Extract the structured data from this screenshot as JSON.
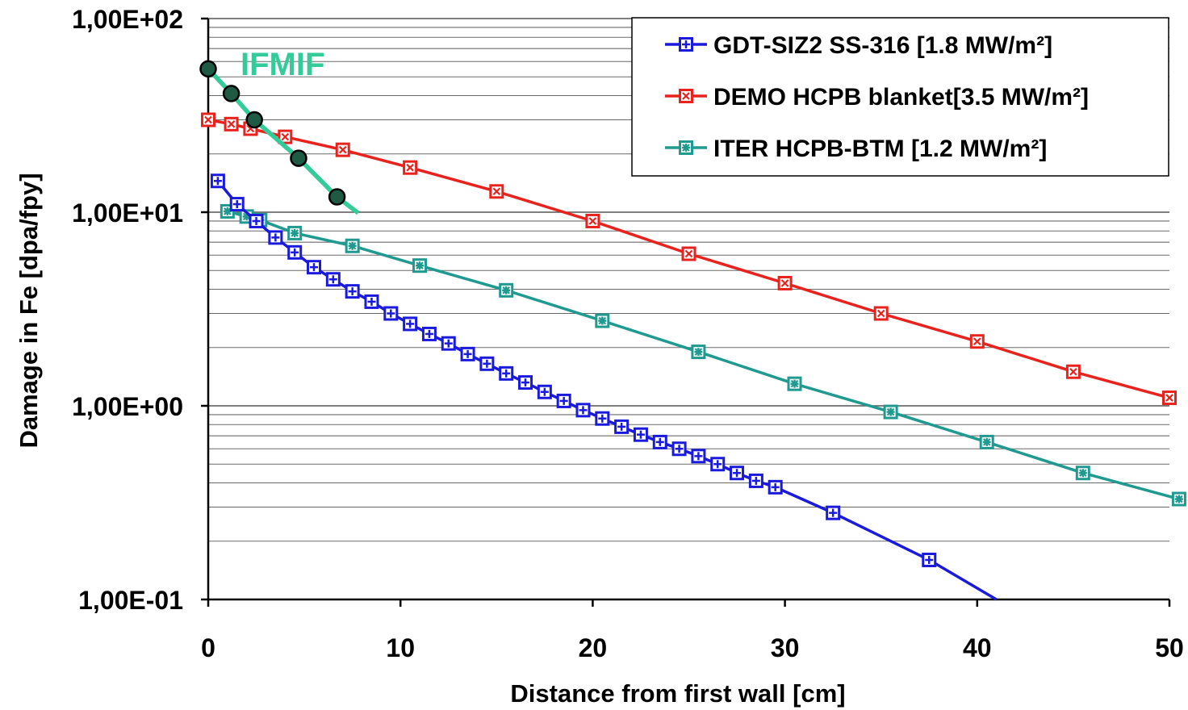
{
  "chart_data": {
    "type": "line",
    "x_axis": {
      "label": "Distance from first wall [cm]",
      "range": [
        0,
        50
      ],
      "ticks": [
        0,
        10,
        20,
        30,
        40,
        50
      ],
      "tick_labels": [
        "0",
        "10",
        "20",
        "30",
        "40",
        "50"
      ],
      "scale": "linear"
    },
    "y_axis": {
      "label": "Damage in Fe [dpa/fpy]",
      "range": [
        0.1,
        100
      ],
      "ticks": [
        0.1,
        1,
        10,
        100
      ],
      "tick_labels": [
        "1,00E-01",
        "1,00E+00",
        "1,00E+01",
        "1,00E+02"
      ],
      "scale": "log"
    },
    "grid": "horizontal minor and major lines",
    "legend": {
      "placement": "top-right",
      "entries": [
        "GDT-SIZ2 SS-316 [1.8 MW/m²]",
        "DEMO HCPB blanket[3.5 MW/m²]",
        "ITER HCPB-BTM [1.2 MW/m²]"
      ]
    },
    "annotations": [
      {
        "text": "IFMIF",
        "color": "#33cc99"
      }
    ],
    "series": [
      {
        "name": "GDT-SIZ2 SS-316 [1.8 MW/m²]",
        "color": "#1a1adc",
        "marker": "square-cross",
        "x": [
          0.5,
          1.5,
          2.5,
          3.5,
          4.5,
          5.5,
          6.5,
          7.5,
          8.5,
          9.5,
          10.5,
          11.5,
          12.5,
          13.5,
          14.5,
          15.5,
          16.5,
          17.5,
          18.5,
          19.5,
          20.5,
          21.5,
          22.5,
          23.5,
          24.5,
          25.5,
          26.5,
          27.5,
          28.5,
          29.5,
          32.5,
          37.5,
          41
        ],
        "y": [
          14.5,
          11.0,
          9.0,
          7.4,
          6.2,
          5.2,
          4.5,
          3.9,
          3.45,
          3.0,
          2.65,
          2.35,
          2.1,
          1.85,
          1.65,
          1.47,
          1.32,
          1.18,
          1.06,
          0.95,
          0.86,
          0.78,
          0.71,
          0.65,
          0.6,
          0.55,
          0.5,
          0.45,
          0.41,
          0.38,
          0.28,
          0.16,
          0.1
        ],
        "markers_shown": 32
      },
      {
        "name": "DEMO HCPB blanket[3.5 MW/m²]",
        "color": "#e8231e",
        "marker": "square-x",
        "x": [
          0,
          1.2,
          2.2,
          4,
          7,
          10.5,
          15,
          20,
          25,
          30,
          35,
          40,
          45,
          50
        ],
        "y": [
          30,
          28.5,
          27,
          24.5,
          21,
          17,
          12.8,
          9.0,
          6.1,
          4.3,
          3.0,
          2.15,
          1.5,
          1.1
        ]
      },
      {
        "name": "ITER HCPB-BTM [1.2 MW/m²]",
        "color": "#209a90",
        "marker": "square-star",
        "x": [
          1,
          2,
          2.7,
          4.5,
          7.5,
          11,
          15.5,
          20.5,
          25.5,
          30.5,
          35.5,
          40.5,
          45.5,
          50.5
        ],
        "y": [
          10.1,
          9.5,
          9.1,
          7.8,
          6.7,
          5.3,
          3.95,
          2.75,
          1.9,
          1.3,
          0.93,
          0.65,
          0.45,
          0.33
        ]
      },
      {
        "name": "IFMIF",
        "color": "#33cc99",
        "marker": "circle",
        "x": [
          0,
          1.2,
          2.4,
          4.7,
          6.7,
          7.8
        ],
        "y": [
          55,
          41,
          30,
          19,
          12,
          9.9
        ],
        "markers_shown": 5
      }
    ]
  }
}
